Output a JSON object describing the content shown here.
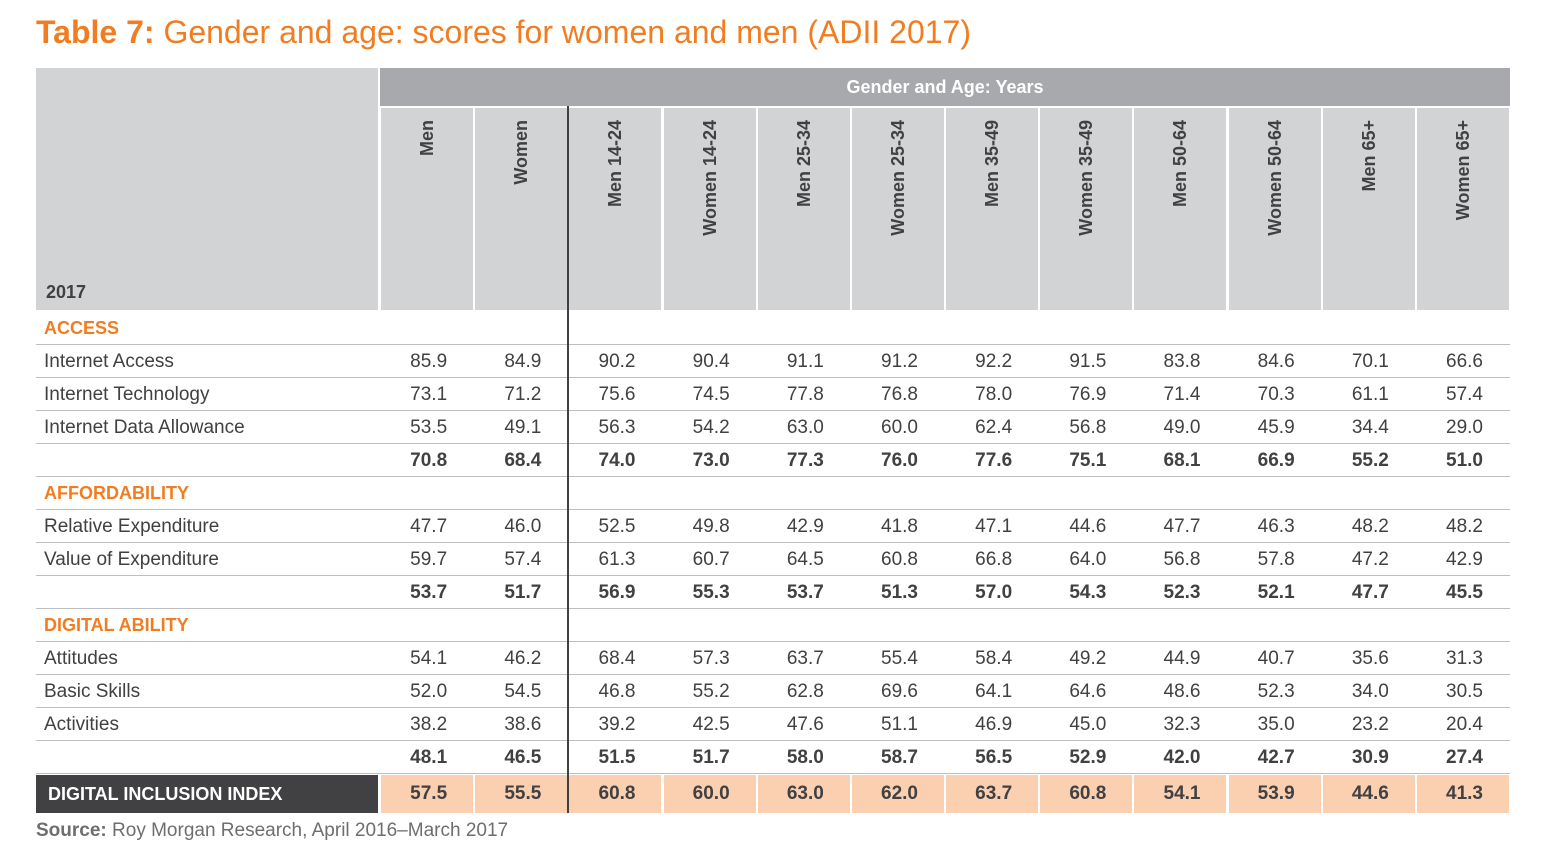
{
  "header": {
    "title_prefix": "Table 7:",
    "title": "Gender and age: scores for women and men (ADII 2017)"
  },
  "table": {
    "group_header": "Gender and Age: Years",
    "corner": "2017",
    "columns": [
      "Men",
      "Women",
      "Men 14-24",
      "Women 14-24",
      "Men 25-34",
      "Women 25-34",
      "Men 35-49",
      "Women 35-49",
      "Men 50-64",
      "Women 50-64",
      "Men 65+",
      "Women 65+"
    ],
    "sections": [
      {
        "name": "ACCESS",
        "rows": [
          {
            "label": "Internet Access",
            "values": [
              "85.9",
              "84.9",
              "90.2",
              "90.4",
              "91.1",
              "91.2",
              "92.2",
              "91.5",
              "83.8",
              "84.6",
              "70.1",
              "66.6"
            ]
          },
          {
            "label": "Internet Technology",
            "values": [
              "73.1",
              "71.2",
              "75.6",
              "74.5",
              "77.8",
              "76.8",
              "78.0",
              "76.9",
              "71.4",
              "70.3",
              "61.1",
              "57.4"
            ]
          },
          {
            "label": "Internet Data Allowance",
            "values": [
              "53.5",
              "49.1",
              "56.3",
              "54.2",
              "63.0",
              "60.0",
              "62.4",
              "56.8",
              "49.0",
              "45.9",
              "34.4",
              "29.0"
            ]
          }
        ],
        "subtotal": [
          "70.8",
          "68.4",
          "74.0",
          "73.0",
          "77.3",
          "76.0",
          "77.6",
          "75.1",
          "68.1",
          "66.9",
          "55.2",
          "51.0"
        ]
      },
      {
        "name": "AFFORDABILITY",
        "rows": [
          {
            "label": "Relative Expenditure",
            "values": [
              "47.7",
              "46.0",
              "52.5",
              "49.8",
              "42.9",
              "41.8",
              "47.1",
              "44.6",
              "47.7",
              "46.3",
              "48.2",
              "48.2"
            ]
          },
          {
            "label": "Value of Expenditure",
            "values": [
              "59.7",
              "57.4",
              "61.3",
              "60.7",
              "64.5",
              "60.8",
              "66.8",
              "64.0",
              "56.8",
              "57.8",
              "47.2",
              "42.9"
            ]
          }
        ],
        "subtotal": [
          "53.7",
          "51.7",
          "56.9",
          "55.3",
          "53.7",
          "51.3",
          "57.0",
          "54.3",
          "52.3",
          "52.1",
          "47.7",
          "45.5"
        ]
      },
      {
        "name": "DIGITAL ABILITY",
        "rows": [
          {
            "label": "Attitudes",
            "values": [
              "54.1",
              "46.2",
              "68.4",
              "57.3",
              "63.7",
              "55.4",
              "58.4",
              "49.2",
              "44.9",
              "40.7",
              "35.6",
              "31.3"
            ]
          },
          {
            "label": "Basic Skills",
            "values": [
              "52.0",
              "54.5",
              "46.8",
              "55.2",
              "62.8",
              "69.6",
              "64.1",
              "64.6",
              "48.6",
              "52.3",
              "34.0",
              "30.5"
            ]
          },
          {
            "label": "Activities",
            "values": [
              "38.2",
              "38.6",
              "39.2",
              "42.5",
              "47.6",
              "51.1",
              "46.9",
              "45.0",
              "32.3",
              "35.0",
              "23.2",
              "20.4"
            ]
          }
        ],
        "subtotal": [
          "48.1",
          "46.5",
          "51.5",
          "51.7",
          "58.0",
          "58.7",
          "56.5",
          "52.9",
          "42.0",
          "42.7",
          "30.9",
          "27.4"
        ]
      }
    ],
    "index": {
      "label": "DIGITAL INCLUSION INDEX",
      "values": [
        "57.5",
        "55.5",
        "60.8",
        "60.0",
        "63.0",
        "62.0",
        "63.7",
        "60.8",
        "54.1",
        "53.9",
        "44.6",
        "41.3"
      ]
    }
  },
  "source": {
    "label": "Source:",
    "text": "Roy Morgan Research, April 2016–March 2017"
  }
}
